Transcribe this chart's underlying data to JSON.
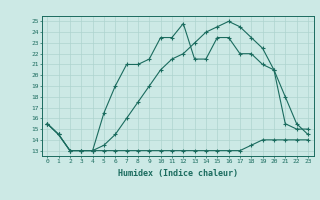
{
  "xlabel": "Humidex (Indice chaleur)",
  "bg_color": "#cce9e5",
  "line_color": "#1a6b5e",
  "grid_color": "#aed4cf",
  "xlim": [
    -0.5,
    23.5
  ],
  "ylim": [
    12.5,
    25.5
  ],
  "xticks": [
    0,
    1,
    2,
    3,
    4,
    5,
    6,
    7,
    8,
    9,
    10,
    11,
    12,
    13,
    14,
    15,
    16,
    17,
    18,
    19,
    20,
    21,
    22,
    23
  ],
  "yticks": [
    13,
    14,
    15,
    16,
    17,
    18,
    19,
    20,
    21,
    22,
    23,
    24,
    25
  ],
  "line1_x": [
    0,
    1,
    2,
    3,
    4,
    5,
    6,
    7,
    8,
    9,
    10,
    11,
    12,
    13,
    14,
    15,
    16,
    17,
    18,
    19,
    20,
    21,
    22,
    23
  ],
  "line1_y": [
    15.5,
    14.5,
    13.0,
    13.0,
    13.0,
    13.0,
    13.0,
    13.0,
    13.0,
    13.0,
    13.0,
    13.0,
    13.0,
    13.0,
    13.0,
    13.0,
    13.0,
    13.0,
    13.5,
    14.0,
    14.0,
    14.0,
    14.0,
    14.0
  ],
  "line2_x": [
    0,
    1,
    2,
    3,
    4,
    5,
    6,
    7,
    8,
    9,
    10,
    11,
    12,
    13,
    14,
    15,
    16,
    17,
    18,
    19,
    20,
    21,
    22,
    23
  ],
  "line2_y": [
    15.5,
    14.5,
    13.0,
    13.0,
    13.0,
    13.5,
    14.5,
    16.0,
    17.5,
    19.0,
    20.5,
    21.5,
    22.0,
    23.0,
    24.0,
    24.5,
    25.0,
    24.5,
    23.5,
    22.5,
    20.5,
    18.0,
    15.5,
    14.5
  ],
  "line3_x": [
    0,
    1,
    2,
    3,
    4,
    5,
    6,
    7,
    8,
    9,
    10,
    11,
    12,
    13,
    14,
    15,
    16,
    17,
    18,
    19,
    20,
    21,
    22,
    23
  ],
  "line3_y": [
    15.5,
    14.5,
    13.0,
    13.0,
    13.0,
    16.5,
    19.0,
    21.0,
    21.0,
    21.5,
    23.5,
    23.5,
    24.8,
    21.5,
    21.5,
    23.5,
    23.5,
    22.0,
    22.0,
    21.0,
    20.5,
    15.5,
    15.0,
    15.0
  ],
  "title_fontsize": 7,
  "xlabel_fontsize": 6,
  "tick_fontsize": 4.5
}
